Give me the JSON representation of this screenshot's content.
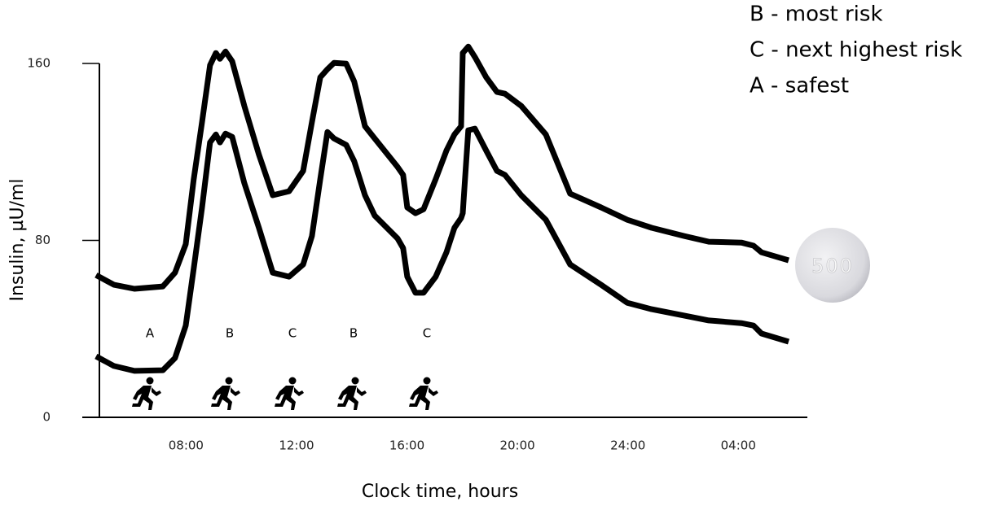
{
  "chart_data": {
    "type": "line",
    "x_label": "Clock time, hours",
    "y_label": "Insulin, µU/ml",
    "x": [
      4.74,
      5.39,
      6.13,
      7.16,
      7.6,
      7.99,
      8.28,
      8.58,
      8.87,
      9.08,
      9.23,
      9.43,
      9.67,
      10.11,
      10.64,
      11.14,
      11.73,
      12.24,
      12.56,
      12.86,
      13.12,
      13.36,
      13.8,
      14.09,
      14.48,
      14.83,
      15.66,
      15.86,
      16.01,
      16.31,
      16.6,
      17.04,
      17.43,
      17.72,
      17.96,
      18.02,
      18.22,
      18.46,
      18.87,
      19.26,
      19.55,
      20.14,
      21.03,
      21.91,
      23.03,
      23.98,
      24.86,
      26.04,
      26.93,
      28.11,
      28.55,
      28.84,
      29.82
    ],
    "series": [
      {
        "color": "#000000",
        "values": [
          64.3,
          59.9,
          58.1,
          59.2,
          65.4,
          78.3,
          107.7,
          133.5,
          159.2,
          164.7,
          162.1,
          165.4,
          161.0,
          140.8,
          118.8,
          100.4,
          102.2,
          111.4,
          133.5,
          153.7,
          157.4,
          160.3,
          159.9,
          151.8,
          131.6,
          126.1,
          113.2,
          109.6,
          94.9,
          92.3,
          94.1,
          107.7,
          120.6,
          127.9,
          131.6,
          164.7,
          167.6,
          162.9,
          153.7,
          147.1,
          146.3,
          140.8,
          127.9,
          101.1,
          94.9,
          89.3,
          85.7,
          82.0,
          79.4,
          79.0,
          77.6,
          74.6,
          71.0
        ]
      },
      {
        "color": "#000000",
        "values": [
          27.6,
          23.2,
          21.0,
          21.3,
          26.8,
          41.5,
          67.3,
          94.9,
          124.3,
          127.9,
          124.3,
          128.3,
          126.8,
          105.9,
          85.7,
          65.4,
          63.6,
          69.1,
          82.0,
          107.7,
          129.0,
          126.1,
          123.2,
          115.8,
          100.4,
          91.2,
          80.9,
          76.5,
          63.6,
          56.3,
          56.3,
          63.6,
          74.6,
          85.7,
          90.1,
          92.3,
          129.8,
          130.5,
          120.6,
          111.4,
          109.6,
          100.4,
          89.3,
          69.1,
          59.9,
          51.8,
          48.9,
          46.0,
          43.8,
          42.6,
          41.5,
          37.9,
          34.2
        ]
      }
    ],
    "xlim": [
      4.7,
      30.5
    ],
    "xticks": [
      {
        "value": 8,
        "label": "08:00"
      },
      {
        "value": 12,
        "label": "12:00"
      },
      {
        "value": 16,
        "label": "16:00"
      },
      {
        "value": 20,
        "label": "20:00"
      },
      {
        "value": 24,
        "label": "24:00"
      },
      {
        "value": 28,
        "label": "04:00"
      }
    ],
    "ylim": [
      0,
      160
    ],
    "yticks": [
      0,
      80,
      160
    ],
    "zone_labels": [
      "A",
      "B",
      "C",
      "B",
      "C"
    ],
    "risk_key": [
      "B - most risk",
      "C - next highest risk",
      "A - safest"
    ],
    "pill_label": "500"
  }
}
